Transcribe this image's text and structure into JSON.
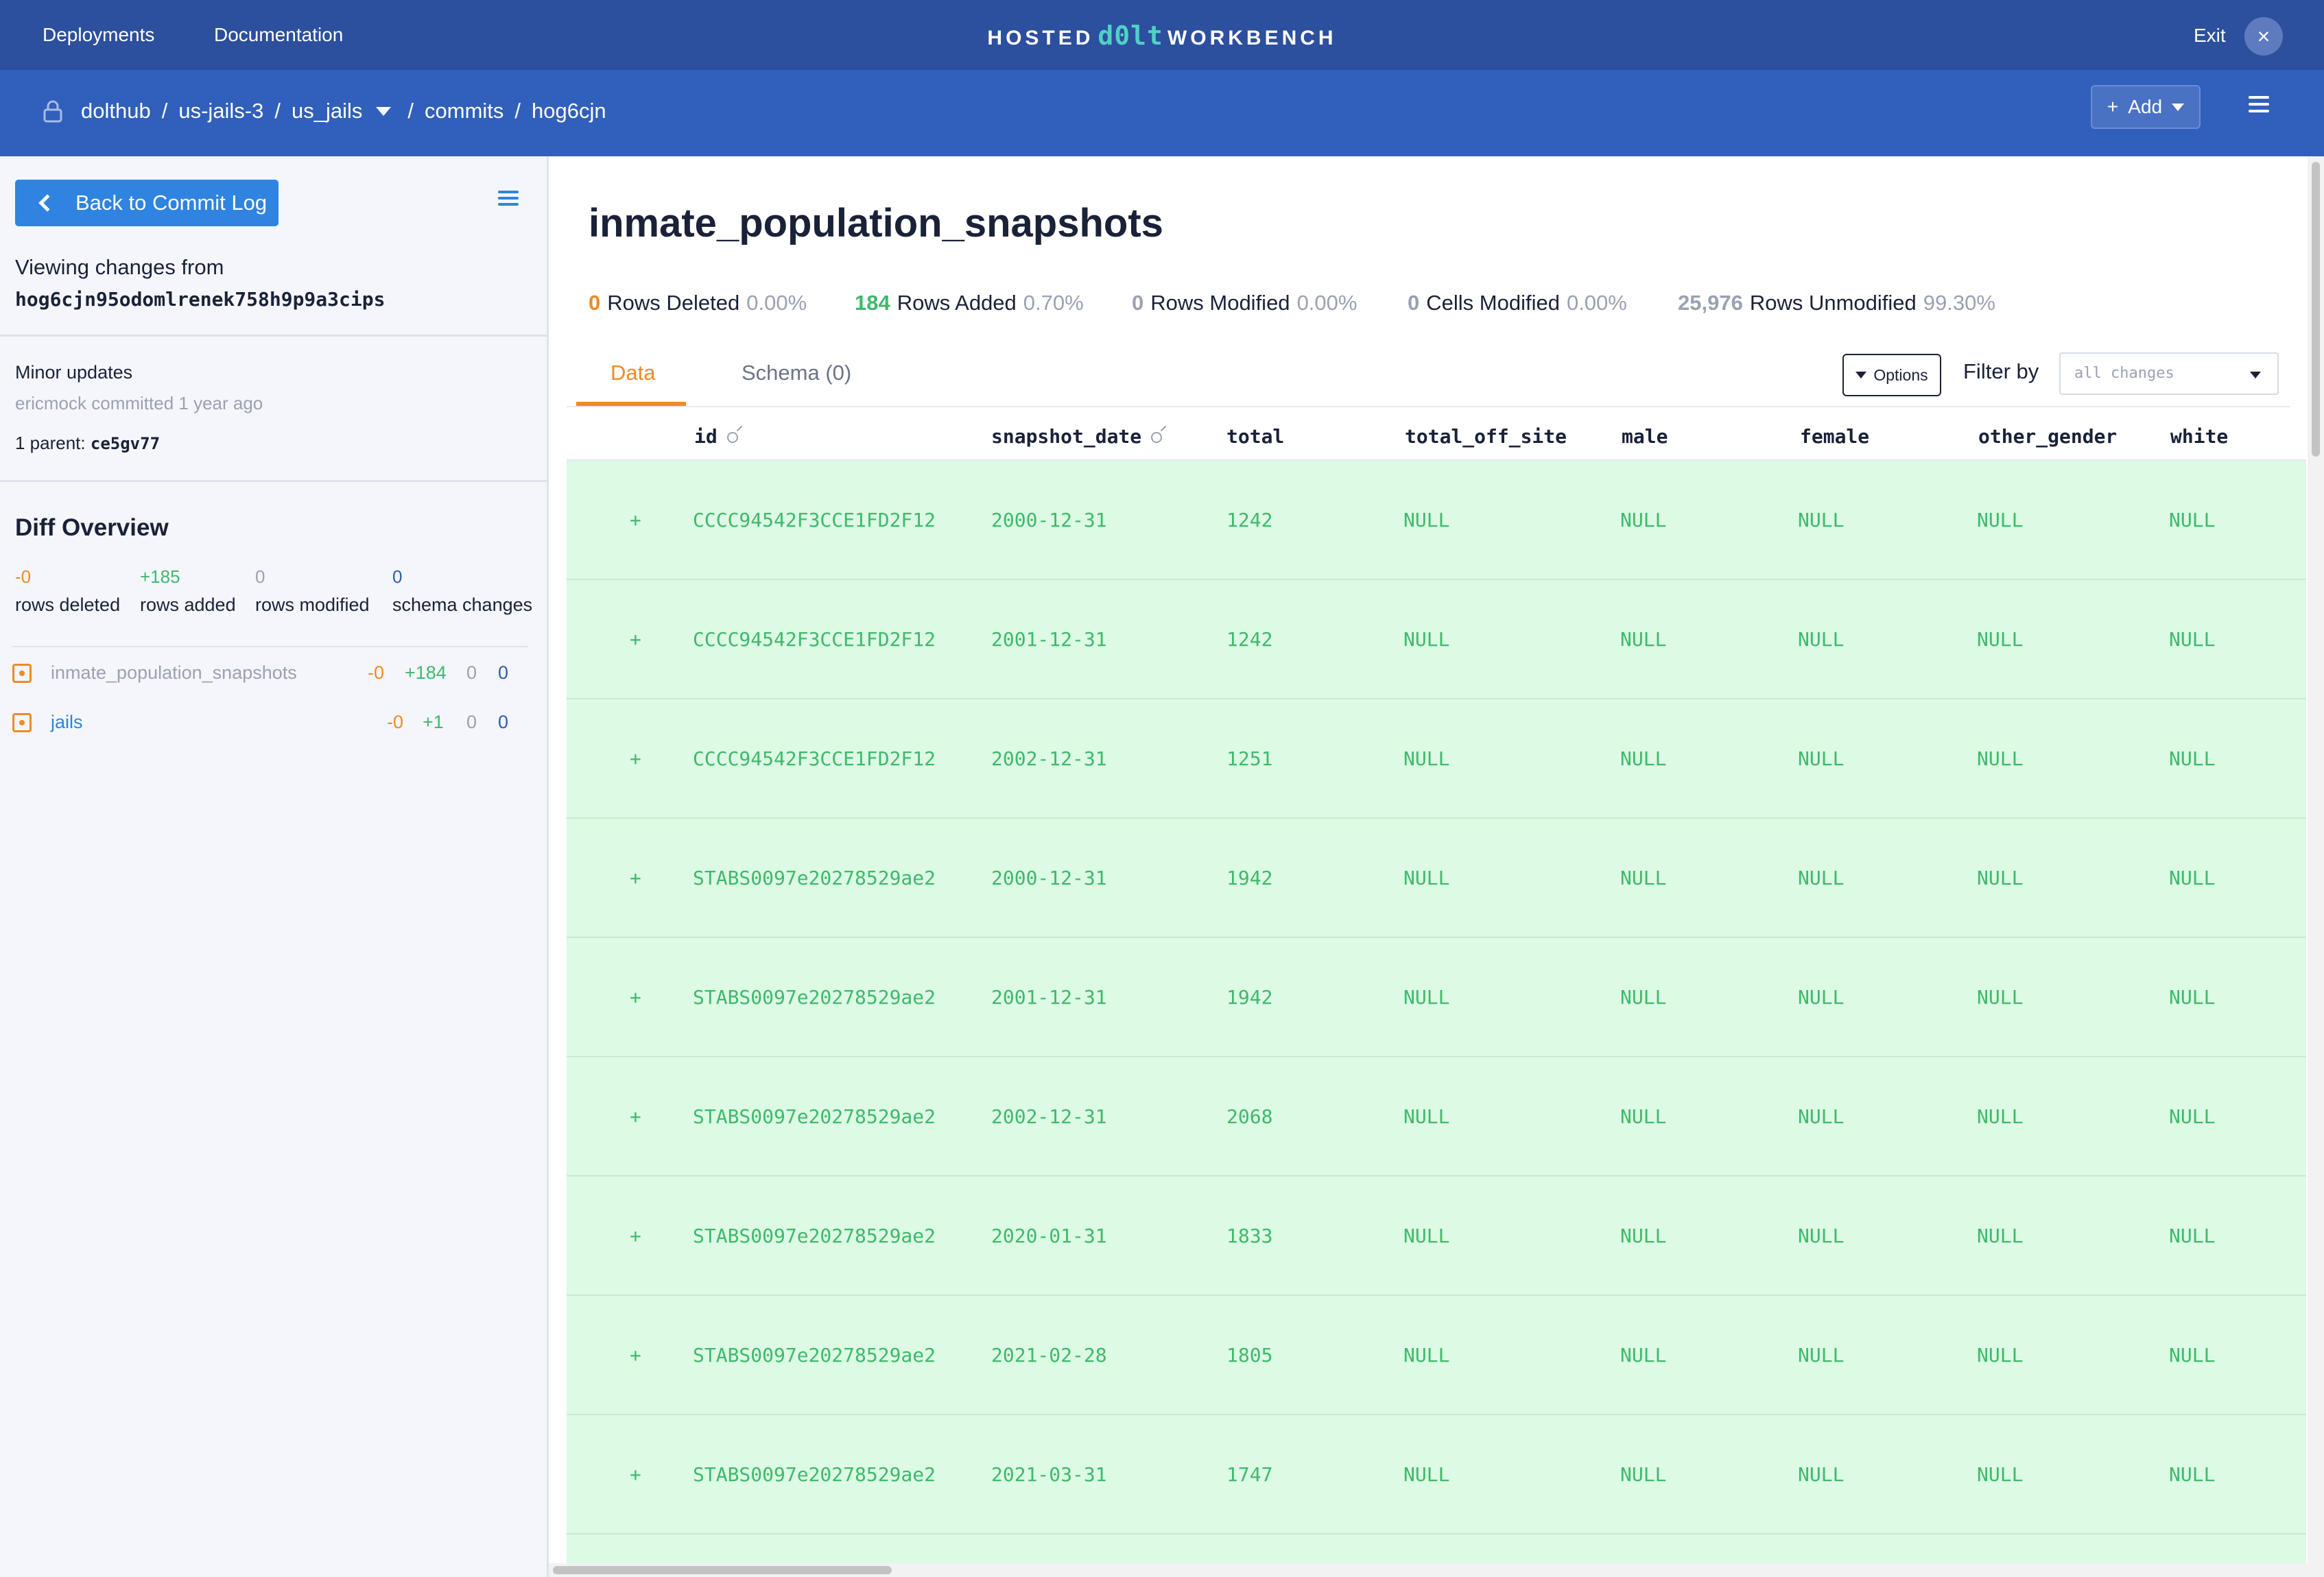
{
  "topnav": {
    "deployments": "Deployments",
    "documentation": "Documentation",
    "brand_left": "HOSTED",
    "brand_mid": "d0lt",
    "brand_right": "WORKBENCH",
    "exit": "Exit",
    "exit_icon": "close-icon"
  },
  "breadcrumb": {
    "owner": "dolthub",
    "deployment": "us-jails-3",
    "database": "us_jails",
    "section": "commits",
    "commit": "hog6cjn",
    "sep": "/"
  },
  "header_actions": {
    "add_label": "Add",
    "add_plus": "+"
  },
  "sidebar": {
    "back_label": "Back to Commit Log",
    "viewing_label": "Viewing changes from",
    "commit_hash": "hog6cjn95odomlrenek758h9p9a3cips",
    "commit_message": "Minor updates",
    "commit_meta": "ericmock committed 1 year ago",
    "parent_label": "1 parent:",
    "parent_hash": "ce5gv77",
    "diff_title": "Diff Overview",
    "stats": [
      {
        "value": "-0",
        "label": "rows deleted",
        "color": "#f08a24"
      },
      {
        "value": "+185",
        "label": "rows added",
        "color": "#3fb96b"
      },
      {
        "value": "0",
        "label": "rows modified",
        "color": "#9aa1b3"
      },
      {
        "value": "0",
        "label": "schema changes",
        "color": "#2a5fb0"
      }
    ],
    "tables": [
      {
        "name": "inmate_population_snapshots",
        "deleted": "-0",
        "added": "+184",
        "modified": "0",
        "schema": "0",
        "active": true
      },
      {
        "name": "jails",
        "deleted": "-0",
        "added": "+1",
        "modified": "0",
        "schema": "0",
        "active": false
      }
    ]
  },
  "main": {
    "title": "inmate_population_snapshots",
    "summary": [
      {
        "num": "0",
        "label": "Rows Deleted",
        "pct": "0.00%",
        "color": "#f08a24"
      },
      {
        "num": "184",
        "label": "Rows Added",
        "pct": "0.70%",
        "color": "#3fb96b"
      },
      {
        "num": "0",
        "label": "Rows Modified",
        "pct": "0.00%",
        "color": "#9aa1b3"
      },
      {
        "num": "0",
        "label": "Cells Modified",
        "pct": "0.00%",
        "color": "#9aa1b3"
      },
      {
        "num": "25,976",
        "label": "Rows Unmodified",
        "pct": "99.30%",
        "color": "#9aa1b3"
      }
    ],
    "tabs": [
      {
        "label": "Data",
        "active": true
      },
      {
        "label": "Schema (0)",
        "active": false
      }
    ],
    "options_label": "Options",
    "filter_label": "Filter by",
    "filter_value": "all changes",
    "columns": [
      "id",
      "snapshot_date",
      "total",
      "total_off_site",
      "male",
      "female",
      "other_gender",
      "white"
    ],
    "rows": [
      {
        "marker": "+",
        "cells": [
          "CCCC94542F3CCE1FD2F12",
          "2000-12-31",
          "1242",
          "NULL",
          "NULL",
          "NULL",
          "NULL",
          "NULL"
        ]
      },
      {
        "marker": "+",
        "cells": [
          "CCCC94542F3CCE1FD2F12",
          "2001-12-31",
          "1242",
          "NULL",
          "NULL",
          "NULL",
          "NULL",
          "NULL"
        ]
      },
      {
        "marker": "+",
        "cells": [
          "CCCC94542F3CCE1FD2F12",
          "2002-12-31",
          "1251",
          "NULL",
          "NULL",
          "NULL",
          "NULL",
          "NULL"
        ]
      },
      {
        "marker": "+",
        "cells": [
          "STABS0097e20278529ae2",
          "2000-12-31",
          "1942",
          "NULL",
          "NULL",
          "NULL",
          "NULL",
          "NULL"
        ]
      },
      {
        "marker": "+",
        "cells": [
          "STABS0097e20278529ae2",
          "2001-12-31",
          "1942",
          "NULL",
          "NULL",
          "NULL",
          "NULL",
          "NULL"
        ]
      },
      {
        "marker": "+",
        "cells": [
          "STABS0097e20278529ae2",
          "2002-12-31",
          "2068",
          "NULL",
          "NULL",
          "NULL",
          "NULL",
          "NULL"
        ]
      },
      {
        "marker": "+",
        "cells": [
          "STABS0097e20278529ae2",
          "2020-01-31",
          "1833",
          "NULL",
          "NULL",
          "NULL",
          "NULL",
          "NULL"
        ]
      },
      {
        "marker": "+",
        "cells": [
          "STABS0097e20278529ae2",
          "2021-02-28",
          "1805",
          "NULL",
          "NULL",
          "NULL",
          "NULL",
          "NULL"
        ]
      },
      {
        "marker": "+",
        "cells": [
          "STABS0097e20278529ae2",
          "2021-03-31",
          "1747",
          "NULL",
          "NULL",
          "NULL",
          "NULL",
          "NULL"
        ]
      }
    ]
  }
}
